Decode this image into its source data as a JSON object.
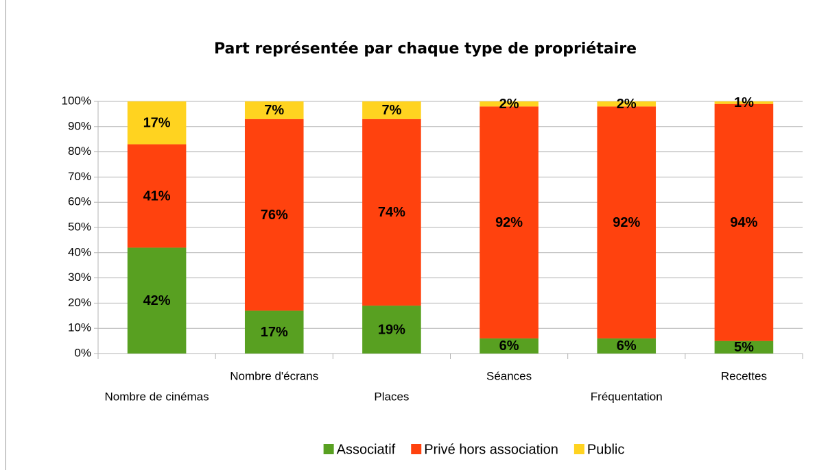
{
  "chart_data": {
    "type": "stacked_bar",
    "title": "Part représentée par chaque type de propriétaire",
    "categories": [
      "Nombre de cinémas",
      "Nombre d'écrans",
      "Places",
      "Séances",
      "Fréquentation",
      "Recettes"
    ],
    "series": [
      {
        "name": "Associatif",
        "color": "#58a021",
        "values": [
          42,
          17,
          19,
          6,
          6,
          5
        ],
        "value_labels": [
          "42%",
          "17%",
          "19%",
          "6%",
          "6%",
          "5%"
        ]
      },
      {
        "name": "Privé hors association",
        "color": "#ff420e",
        "values": [
          41,
          76,
          74,
          92,
          92,
          94
        ],
        "value_labels": [
          "41%",
          "76%",
          "74%",
          "92%",
          "92%",
          "94%"
        ]
      },
      {
        "name": "Public",
        "color": "#ffd320",
        "values": [
          17,
          7,
          7,
          2,
          2,
          1
        ],
        "value_labels": [
          "17%",
          "7%",
          "7%",
          "2%",
          "2%",
          "1%"
        ]
      }
    ],
    "ylim": [
      0,
      100
    ],
    "yticks": [
      {
        "value": 0,
        "label": "0%"
      },
      {
        "value": 10,
        "label": "10%"
      },
      {
        "value": 20,
        "label": "20%"
      },
      {
        "value": 30,
        "label": "30%"
      },
      {
        "value": 40,
        "label": "40%"
      },
      {
        "value": 50,
        "label": "50%"
      },
      {
        "value": 60,
        "label": "60%"
      },
      {
        "value": 70,
        "label": "70%"
      },
      {
        "value": 80,
        "label": "80%"
      },
      {
        "value": 90,
        "label": "90%"
      },
      {
        "value": 100,
        "label": "100%"
      }
    ],
    "grid": true,
    "legend": "bottom"
  }
}
